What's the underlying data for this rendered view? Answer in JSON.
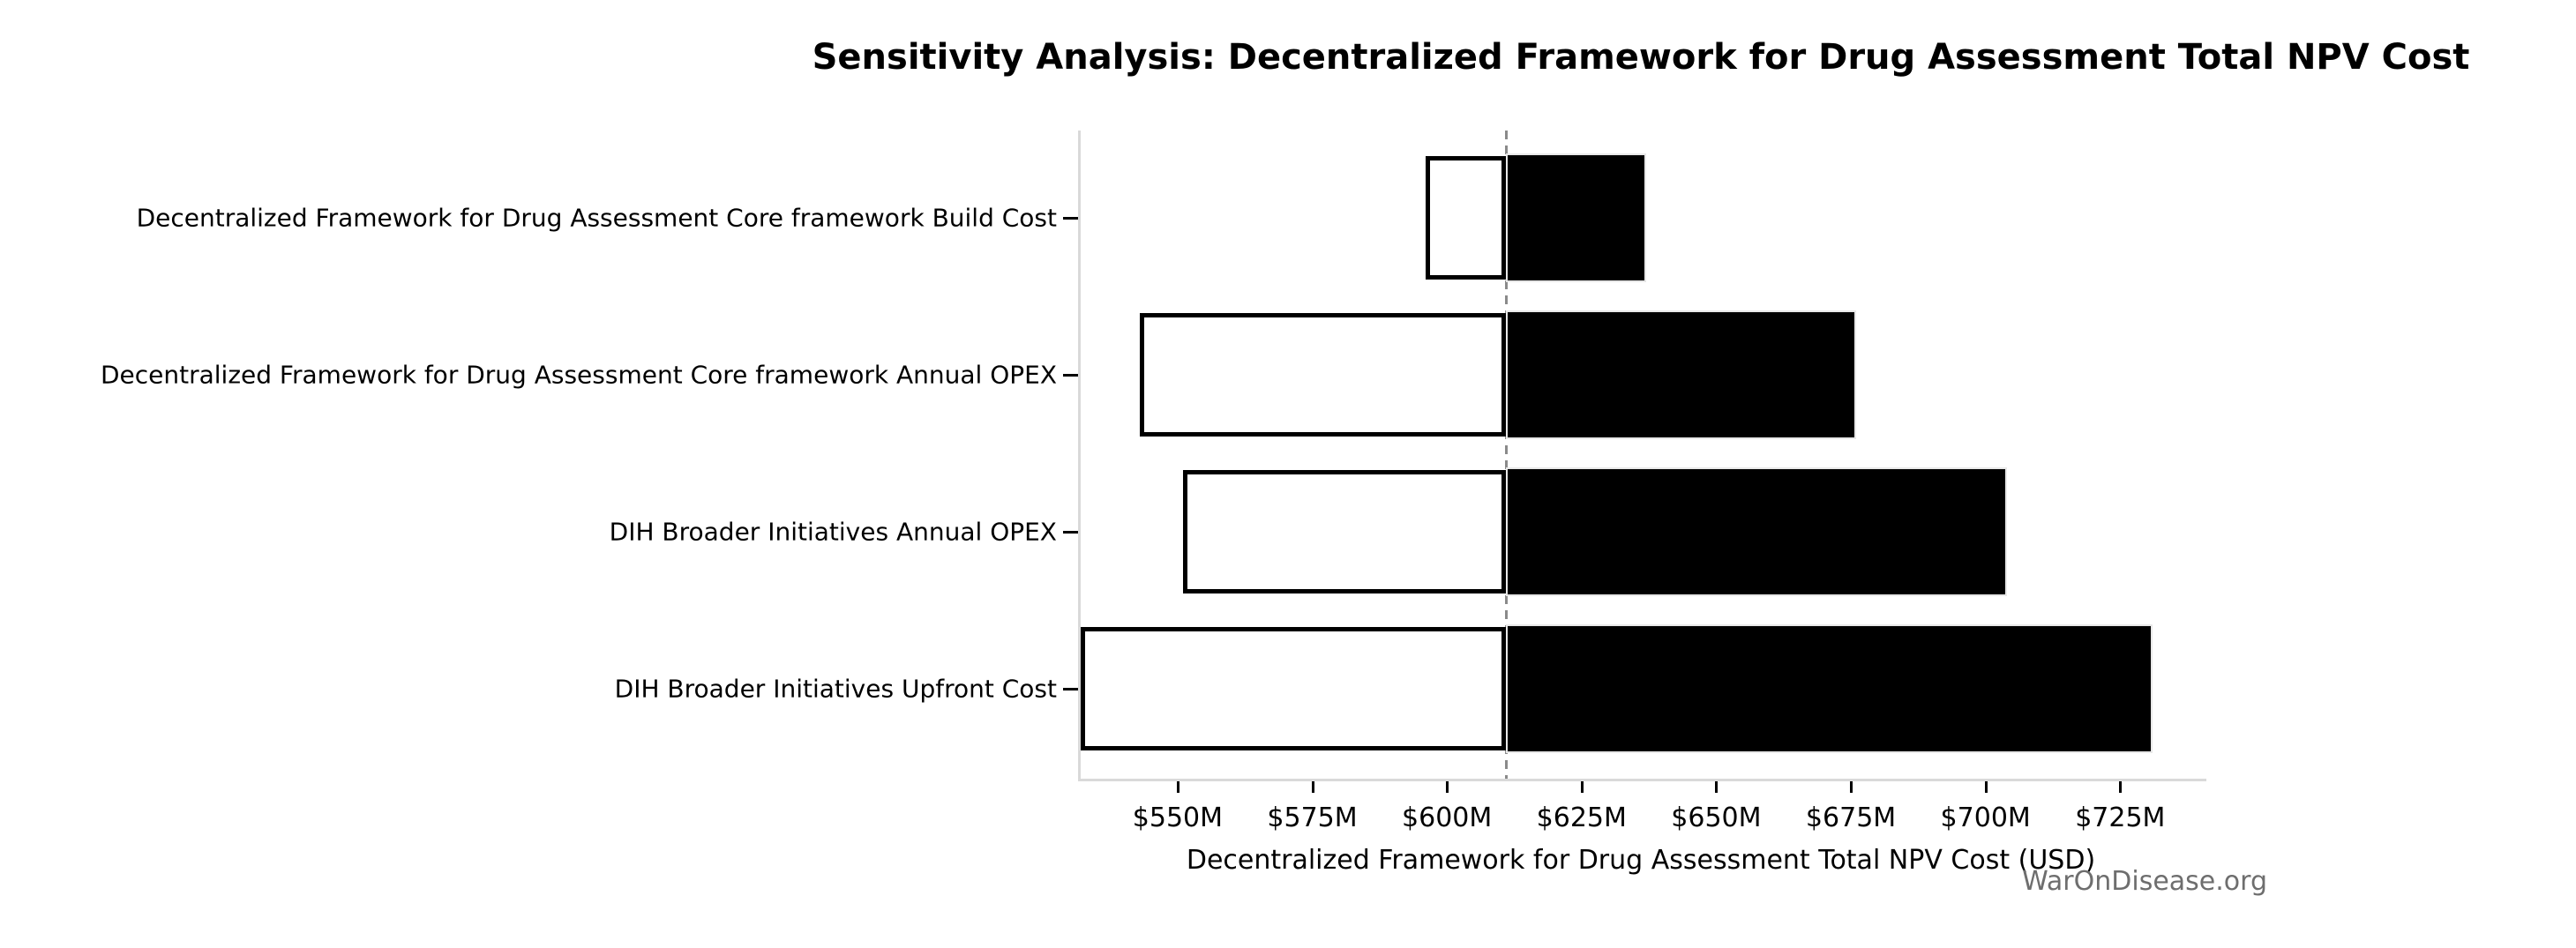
{
  "title": "Sensitivity Analysis: Decentralized Framework for Drug Assessment Total NPV Cost",
  "watermark": "WarOnDisease.org",
  "chart_data": {
    "type": "bar",
    "subtype": "tornado-sensitivity",
    "orientation": "horizontal",
    "title": "Sensitivity Analysis: Decentralized Framework for Drug Assessment Total NPV Cost",
    "xlabel": "Decentralized Framework for Drug Assessment Total NPV Cost (USD)",
    "ylabel": "",
    "units": "USD millions",
    "xlim": [
      532,
      741
    ],
    "x_ticks": [
      550,
      575,
      600,
      625,
      650,
      675,
      700,
      725
    ],
    "x_tick_labels": [
      "$550M",
      "$575M",
      "$600M",
      "$625M",
      "$650M",
      "$675M",
      "$700M",
      "$725M"
    ],
    "baseline_value": 611,
    "grid": false,
    "legend": "none",
    "categories": [
      "Decentralized Framework for Drug Assessment Core framework Build Cost",
      "Decentralized Framework for Drug Assessment Core framework Annual OPEX",
      "DIH Broader Initiatives Annual OPEX",
      "DIH Broader Initiatives Upfront Cost"
    ],
    "series": [
      {
        "name": "low",
        "values": [
          596,
          543,
          551,
          532
        ]
      },
      {
        "name": "high",
        "values": [
          637,
          676,
          704,
          731
        ]
      }
    ],
    "colors": {
      "low_fill": "#ffffff",
      "low_edge": "#000000",
      "high_fill": "#000000",
      "high_edge": "#e8e8e8",
      "baseline": "#8a8a8a",
      "spine": "#d9d9d9",
      "text": "#000000",
      "watermark": "#6e6e6e"
    }
  }
}
